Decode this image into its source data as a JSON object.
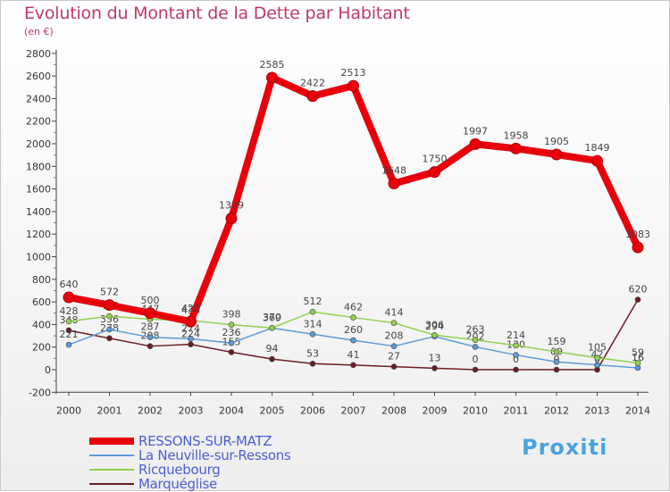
{
  "chart_data": {
    "type": "line",
    "title": "Evolution du Montant de la Dette par Habitant",
    "subtitle": "(en €)",
    "x": [
      "2000",
      "2001",
      "2002",
      "2003",
      "2004",
      "2005",
      "2006",
      "2007",
      "2008",
      "2009",
      "2010",
      "2011",
      "2012",
      "2013",
      "2014"
    ],
    "ylim": [
      -200,
      2800
    ],
    "yticks": [
      -200,
      0,
      200,
      400,
      600,
      800,
      1000,
      1200,
      1400,
      1600,
      1800,
      2000,
      2200,
      2400,
      2600,
      2800
    ],
    "grid": false,
    "legend": "bottom-left",
    "series": [
      {
        "name": "RESSONS-SUR-MATZ",
        "color": "#e8000b",
        "values": [
          640,
          572,
          500,
          426,
          1339,
          2585,
          2422,
          2513,
          1648,
          1750,
          1997,
          1958,
          1905,
          1849,
          1083
        ]
      },
      {
        "name": "La Neuville-sur-Ressons",
        "color": "#5b9bd5",
        "values": [
          221,
          356,
          287,
          274,
          236,
          369,
          314,
          260,
          208,
          294,
          202,
          130,
          69,
          42,
          16
        ]
      },
      {
        "name": "Ricquebourg",
        "color": "#92d050",
        "values": [
          428,
          473,
          447,
          436,
          398,
          370,
          512,
          462,
          414,
          306,
          263,
          214,
          159,
          105,
          59
        ]
      },
      {
        "name": "Marquéglise",
        "color": "#6b1d24",
        "values": [
          348,
          278,
          208,
          224,
          155,
          94,
          53,
          41,
          27,
          13,
          0,
          0,
          0,
          0,
          620
        ]
      }
    ]
  },
  "logo": {
    "text": "Proxiti"
  }
}
